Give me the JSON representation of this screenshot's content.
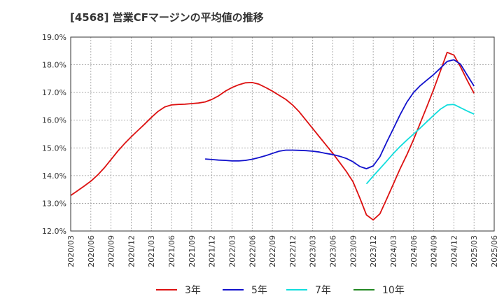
{
  "chart_data": {
    "type": "line",
    "title": "[4568]  営業CFマージンの平均値の推移",
    "xlabel": "",
    "ylabel": "",
    "ylim": [
      12.0,
      19.0
    ],
    "y_ticks": [
      "12.0%",
      "13.0%",
      "14.0%",
      "15.0%",
      "16.0%",
      "17.0%",
      "18.0%",
      "19.0%"
    ],
    "x_ticks": [
      "2020/03",
      "2020/06",
      "2020/09",
      "2020/12",
      "2021/03",
      "2021/06",
      "2021/09",
      "2021/12",
      "2022/03",
      "2022/06",
      "2022/09",
      "2022/12",
      "2023/03",
      "2023/06",
      "2023/09",
      "2023/12",
      "2024/03",
      "2024/06",
      "2024/09",
      "2024/12",
      "2025/03",
      "2025/06"
    ],
    "grid": true,
    "legend_position": "bottom",
    "series": [
      {
        "name": "3年",
        "color": "#dd1111",
        "x": [
          "2020/03",
          "2020/04",
          "2020/05",
          "2020/06",
          "2020/07",
          "2020/08",
          "2020/09",
          "2020/10",
          "2020/11",
          "2020/12",
          "2021/01",
          "2021/02",
          "2021/03",
          "2021/04",
          "2021/05",
          "2021/06",
          "2021/07",
          "2021/08",
          "2021/09",
          "2021/10",
          "2021/11",
          "2021/12",
          "2022/01",
          "2022/02",
          "2022/03",
          "2022/04",
          "2022/05",
          "2022/06",
          "2022/07",
          "2022/08",
          "2022/09",
          "2022/10",
          "2022/11",
          "2022/12",
          "2023/01",
          "2023/02",
          "2023/03",
          "2023/04",
          "2023/05",
          "2023/06",
          "2023/07",
          "2023/08",
          "2023/09",
          "2023/10",
          "2023/11",
          "2023/12",
          "2024/01",
          "2024/02",
          "2024/03",
          "2024/04",
          "2024/05",
          "2024/06",
          "2024/07",
          "2024/08",
          "2024/09",
          "2024/10",
          "2024/11",
          "2024/12",
          "2025/01",
          "2025/02",
          "2025/03"
        ],
        "values": [
          13.28,
          13.45,
          13.62,
          13.8,
          14.02,
          14.28,
          14.58,
          14.88,
          15.15,
          15.4,
          15.63,
          15.86,
          16.1,
          16.32,
          16.48,
          16.55,
          16.57,
          16.58,
          16.6,
          16.62,
          16.66,
          16.75,
          16.88,
          17.05,
          17.18,
          17.28,
          17.35,
          17.36,
          17.3,
          17.18,
          17.05,
          16.9,
          16.75,
          16.55,
          16.3,
          16.0,
          15.7,
          15.4,
          15.1,
          14.8,
          14.48,
          14.15,
          13.78,
          13.2,
          12.58,
          12.4,
          12.62,
          13.15,
          13.7,
          14.25,
          14.75,
          15.3,
          15.9,
          16.5,
          17.12,
          17.78,
          18.45,
          18.35,
          17.92,
          17.43,
          16.97
        ]
      },
      {
        "name": "5年",
        "color": "#1111cc",
        "x": [
          "2021/11",
          "2021/12",
          "2022/01",
          "2022/02",
          "2022/03",
          "2022/04",
          "2022/05",
          "2022/06",
          "2022/07",
          "2022/08",
          "2022/09",
          "2022/10",
          "2022/11",
          "2022/12",
          "2023/01",
          "2023/02",
          "2023/03",
          "2023/04",
          "2023/05",
          "2023/06",
          "2023/07",
          "2023/08",
          "2023/09",
          "2023/10",
          "2023/11",
          "2023/12",
          "2024/01",
          "2024/02",
          "2024/03",
          "2024/04",
          "2024/05",
          "2024/06",
          "2024/07",
          "2024/08",
          "2024/09",
          "2024/10",
          "2024/11",
          "2024/12",
          "2025/01",
          "2025/02",
          "2025/03"
        ],
        "values": [
          14.6,
          14.58,
          14.56,
          14.55,
          14.53,
          14.53,
          14.55,
          14.59,
          14.65,
          14.72,
          14.8,
          14.88,
          14.92,
          14.92,
          14.91,
          14.9,
          14.88,
          14.85,
          14.8,
          14.76,
          14.7,
          14.62,
          14.5,
          14.33,
          14.25,
          14.35,
          14.68,
          15.2,
          15.7,
          16.2,
          16.65,
          17.0,
          17.25,
          17.45,
          17.65,
          17.88,
          18.12,
          18.18,
          18.02,
          17.62,
          17.23
        ]
      },
      {
        "name": "7年",
        "color": "#11dddd",
        "x": [
          "2023/11",
          "2023/12",
          "2024/01",
          "2024/02",
          "2024/03",
          "2024/04",
          "2024/05",
          "2024/06",
          "2024/07",
          "2024/08",
          "2024/09",
          "2024/10",
          "2024/11",
          "2024/12",
          "2025/01",
          "2025/02",
          "2025/03"
        ],
        "values": [
          13.7,
          13.98,
          14.25,
          14.52,
          14.8,
          15.05,
          15.28,
          15.5,
          15.72,
          15.95,
          16.18,
          16.4,
          16.55,
          16.57,
          16.45,
          16.33,
          16.22
        ]
      },
      {
        "name": "10年",
        "color": "#228822",
        "x": [],
        "values": []
      }
    ]
  }
}
